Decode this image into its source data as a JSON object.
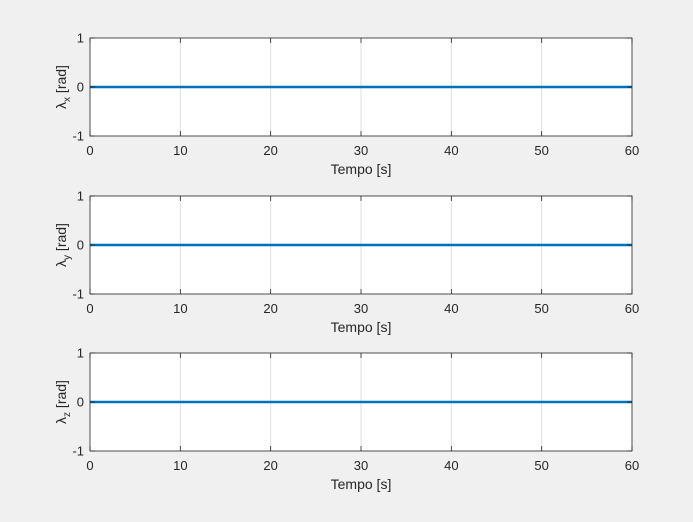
{
  "chart_data": [
    {
      "type": "line",
      "xlabel": "Tempo [s]",
      "ylabel_symbol": "λ",
      "ylabel_subscript": "x",
      "ylabel_unit": "[rad]",
      "xlim": [
        0,
        60
      ],
      "ylim": [
        -1,
        1
      ],
      "xticks": [
        0,
        10,
        20,
        30,
        40,
        50,
        60
      ],
      "yticks": [
        -1,
        0,
        1
      ],
      "grid": "vertical",
      "line_color": "#0072bd",
      "series": [
        {
          "x": [
            0,
            60
          ],
          "y": [
            0,
            0
          ]
        }
      ]
    },
    {
      "type": "line",
      "xlabel": "Tempo [s]",
      "ylabel_symbol": "λ",
      "ylabel_subscript": "y",
      "ylabel_unit": "[rad]",
      "xlim": [
        0,
        60
      ],
      "ylim": [
        -1,
        1
      ],
      "xticks": [
        0,
        10,
        20,
        30,
        40,
        50,
        60
      ],
      "yticks": [
        -1,
        0,
        1
      ],
      "grid": "vertical",
      "line_color": "#0072bd",
      "series": [
        {
          "x": [
            0,
            60
          ],
          "y": [
            0,
            0
          ]
        }
      ]
    },
    {
      "type": "line",
      "xlabel": "Tempo [s]",
      "ylabel_symbol": "λ",
      "ylabel_subscript": "z",
      "ylabel_unit": "[rad]",
      "xlim": [
        0,
        60
      ],
      "ylim": [
        -1,
        1
      ],
      "xticks": [
        0,
        10,
        20,
        30,
        40,
        50,
        60
      ],
      "yticks": [
        -1,
        0,
        1
      ],
      "grid": "vertical",
      "line_color": "#0072bd",
      "series": [
        {
          "x": [
            0,
            60
          ],
          "y": [
            0,
            0
          ]
        }
      ]
    }
  ]
}
